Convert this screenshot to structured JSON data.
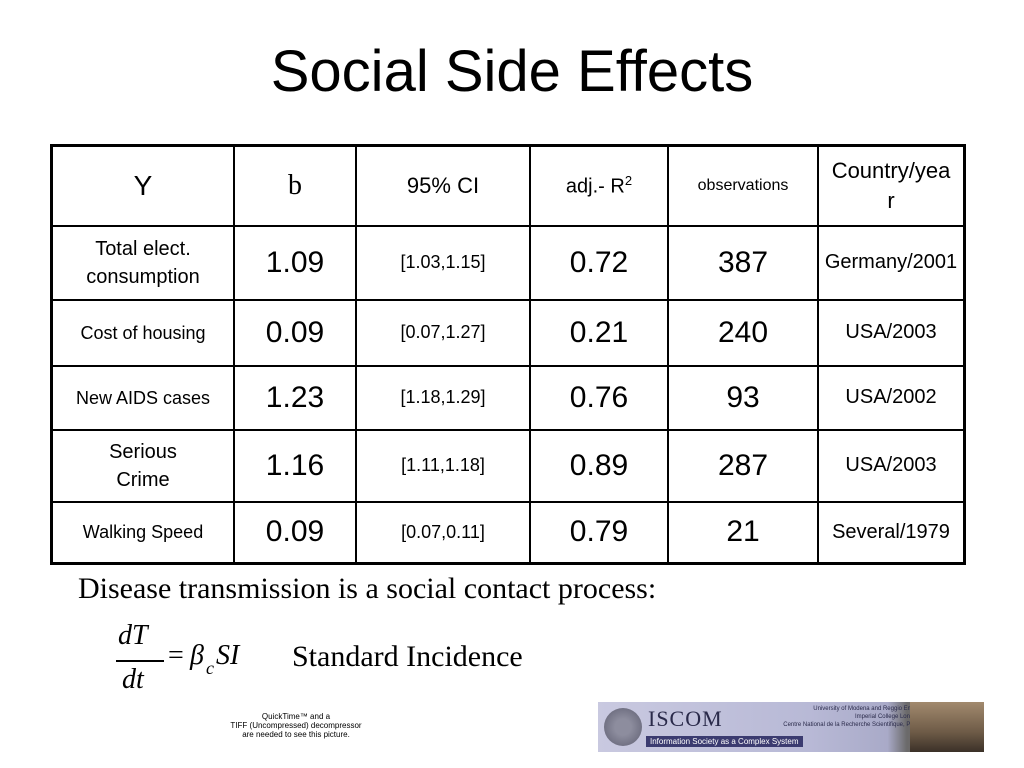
{
  "slide": {
    "title": "Social Side Effects",
    "table": {
      "headers": {
        "y": "Y",
        "b": "b",
        "ci": "95% CI",
        "r2": "adj.- R",
        "r2_sup": "2",
        "obs": "observations",
        "country": "Country/yea\nr"
      },
      "rows": [
        {
          "y": "Total elect. consumption",
          "b": "1.09",
          "ci": "[1.03,1.15]",
          "r2": "0.72",
          "obs": "387",
          "country": "Germany/2001"
        },
        {
          "y": "Cost of housing",
          "b": "0.09",
          "ci": "[0.07,1.27]",
          "r2": "0.21",
          "obs": "240",
          "country": "USA/2003"
        },
        {
          "y": "New AIDS cases",
          "b": "1.23",
          "ci": "[1.18,1.29]",
          "r2": "0.76",
          "obs": "93",
          "country": "USA/2002"
        },
        {
          "y": "Serious Crime",
          "b": "1.16",
          "ci": "[1.11,1.18]",
          "r2": "0.89",
          "obs": "287",
          "country": "USA/2003"
        },
        {
          "y": "Walking Speed",
          "b": "0.09",
          "ci": "[0.07,0.11]",
          "r2": "0.79",
          "obs": "21",
          "country": "Several/1979"
        }
      ]
    },
    "caption": "Disease transmission is a social contact process:",
    "formula": {
      "numerator": "dT",
      "denominator": "dt",
      "equals": "=",
      "beta": "β",
      "subscript": "c",
      "rhs": "SI"
    },
    "formula_label": "Standard Incidence",
    "quicktime_notice": "QuickTime™ and a\nTIFF (Uncompressed) decompressor\nare needed to see this picture.",
    "logo": {
      "name": "ISCOM",
      "subtitle": "Information Society as a Complex System",
      "institutions": [
        "University of Modena and Reggio Emilia",
        "Imperial College London",
        "Centre National de la Recherche Scientifique, Paris"
      ]
    }
  }
}
